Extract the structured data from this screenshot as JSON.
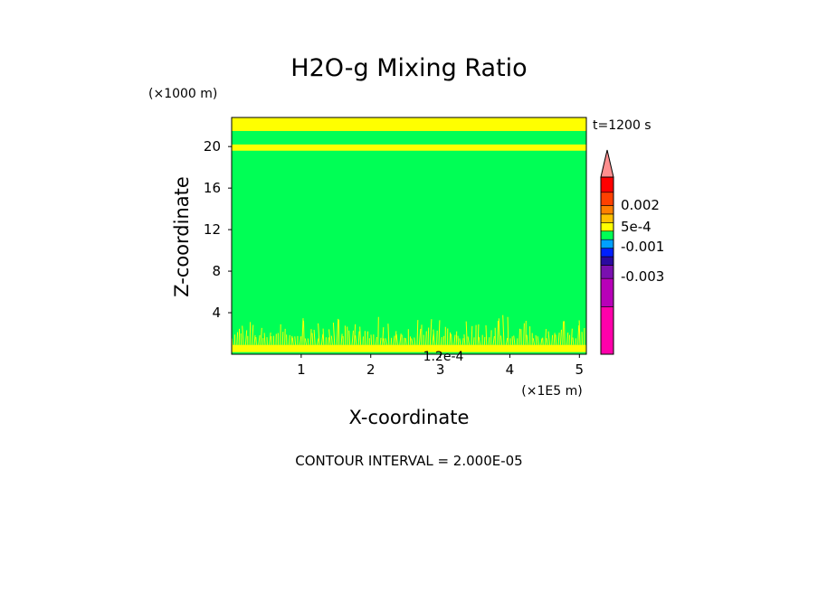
{
  "chart_data": {
    "type": "heatmap",
    "title": "H2O-g Mixing Ratio",
    "xlabel": "X-coordinate",
    "ylabel": "Z-coordinate",
    "x_unit": "(×1E5 m)",
    "y_unit": "(×1000 m)",
    "time_label": "t=1200 s",
    "xlim": [
      0,
      5.1
    ],
    "ylim": [
      0,
      22.8
    ],
    "x_ticks": [
      1,
      2,
      3,
      4,
      5
    ],
    "y_ticks": [
      4,
      8,
      12,
      16,
      20
    ],
    "background_color": "#00ff55",
    "bands": [
      {
        "z0": 21.5,
        "z1": 22.8,
        "color": "#ffff00"
      },
      {
        "z0": 19.6,
        "z1": 20.2,
        "color": "#ffff00"
      },
      {
        "z0": 0.2,
        "z1": 0.9,
        "color": "#ffff00"
      }
    ],
    "noise_layer": {
      "z0": 0.9,
      "z1": 4.0,
      "color": "#ffff00"
    },
    "colorbar": {
      "colors": [
        "#ff00aa",
        "#b800b8",
        "#7a10b0",
        "#2a0aa0",
        "#0020ff",
        "#00a0ff",
        "#00ff55",
        "#ffff00",
        "#ffc000",
        "#ff8000",
        "#ff4000",
        "#ff0000",
        "#ff8f8f"
      ],
      "labels": [
        "0.002",
        "5e-4",
        "-0.001",
        "-0.003"
      ],
      "extend": "max"
    },
    "contour_label": "1.2e-4",
    "contour_interval": "CONTOUR INTERVAL = 2.000E-05"
  }
}
